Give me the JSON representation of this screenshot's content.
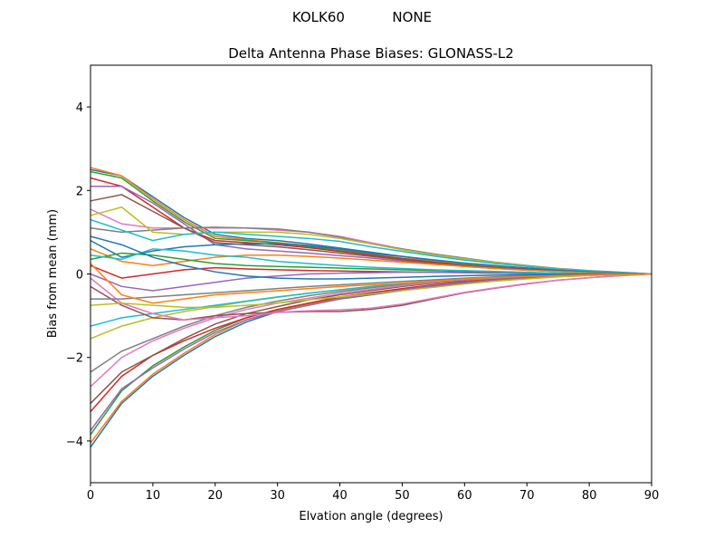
{
  "chart_data": {
    "type": "line",
    "suptitle": "KOLK60           NONE",
    "title": "Delta Antenna Phase Biases: GLONASS-L2",
    "xlabel": "Elvation angle (degrees)",
    "ylabel": "Bias from mean (mm)",
    "xlim": [
      0,
      90
    ],
    "ylim": [
      -5,
      5
    ],
    "xticks": [
      0,
      10,
      20,
      30,
      40,
      50,
      60,
      70,
      80,
      90
    ],
    "yticks": [
      -4,
      -2,
      0,
      2,
      4
    ],
    "grid": false,
    "colors": [
      "#1f77b4",
      "#ff7f0e",
      "#2ca02c",
      "#d62728",
      "#9467bd",
      "#8c564b",
      "#e377c2",
      "#7f7f7f",
      "#bcbd22",
      "#17becf"
    ],
    "x": [
      0,
      5,
      10,
      15,
      20,
      25,
      30,
      35,
      40,
      45,
      50,
      55,
      60,
      65,
      70,
      75,
      80,
      85,
      90
    ],
    "series": [
      {
        "values": [
          -4.15,
          -3.1,
          -2.45,
          -1.95,
          -1.5,
          -1.15,
          -0.9,
          -0.75,
          -0.6,
          -0.5,
          -0.4,
          -0.3,
          -0.22,
          -0.15,
          -0.1,
          -0.06,
          -0.03,
          -0.01,
          0
        ]
      },
      {
        "values": [
          -4.05,
          -3.05,
          -2.4,
          -1.9,
          -1.45,
          -1.1,
          -0.88,
          -0.72,
          -0.58,
          -0.48,
          -0.38,
          -0.28,
          -0.2,
          -0.14,
          -0.09,
          -0.05,
          -0.03,
          -0.01,
          0
        ]
      },
      {
        "values": [
          -3.85,
          -2.8,
          -2.2,
          -1.75,
          -1.35,
          -1.05,
          -0.85,
          -0.7,
          -0.56,
          -0.45,
          -0.36,
          -0.27,
          -0.2,
          -0.14,
          -0.09,
          -0.05,
          -0.03,
          -0.01,
          0
        ]
      },
      {
        "values": [
          -3.3,
          -2.45,
          -1.95,
          -1.6,
          -1.3,
          -1.05,
          -0.85,
          -0.7,
          -0.55,
          -0.45,
          -0.35,
          -0.26,
          -0.19,
          -0.13,
          -0.08,
          -0.05,
          -0.03,
          -0.01,
          0
        ]
      },
      {
        "values": [
          -3.75,
          -2.75,
          -2.25,
          -1.8,
          -1.4,
          -1.1,
          -0.9,
          -0.75,
          -0.6,
          -0.48,
          -0.38,
          -0.28,
          -0.2,
          -0.14,
          -0.09,
          -0.05,
          -0.03,
          -0.01,
          0
        ]
      },
      {
        "values": [
          -3.1,
          -2.35,
          -1.95,
          -1.55,
          -1.2,
          -0.95,
          -0.78,
          -0.62,
          -0.5,
          -0.4,
          -0.3,
          -0.22,
          -0.16,
          -0.11,
          -0.07,
          -0.04,
          -0.02,
          -0.01,
          0
        ]
      },
      {
        "values": [
          -2.7,
          -2.0,
          -1.6,
          -1.3,
          -1.05,
          -0.85,
          -0.7,
          -0.58,
          -0.46,
          -0.37,
          -0.28,
          -0.2,
          -0.14,
          -0.1,
          -0.06,
          -0.04,
          -0.02,
          -0.01,
          0
        ]
      },
      {
        "values": [
          -2.35,
          -1.85,
          -1.55,
          -1.25,
          -1.0,
          -0.8,
          -0.65,
          -0.52,
          -0.42,
          -0.33,
          -0.25,
          -0.18,
          -0.13,
          -0.09,
          -0.06,
          -0.03,
          -0.02,
          -0.01,
          0
        ]
      },
      {
        "values": [
          -1.55,
          -1.25,
          -1.05,
          -0.9,
          -0.78,
          -0.66,
          -0.56,
          -0.46,
          -0.38,
          -0.3,
          -0.23,
          -0.17,
          -0.12,
          -0.08,
          -0.05,
          -0.03,
          -0.02,
          -0.01,
          0
        ]
      },
      {
        "values": [
          -1.25,
          -1.05,
          -0.95,
          -0.85,
          -0.75,
          -0.65,
          -0.55,
          -0.46,
          -0.38,
          -0.3,
          -0.23,
          -0.17,
          -0.12,
          -0.08,
          -0.05,
          -0.03,
          -0.02,
          -0.01,
          0
        ]
      },
      {
        "values": [
          2.5,
          2.35,
          1.85,
          1.35,
          0.95,
          0.85,
          0.8,
          0.72,
          0.62,
          0.52,
          0.42,
          0.32,
          0.25,
          0.19,
          0.14,
          0.09,
          0.05,
          0.02,
          0
        ]
      },
      {
        "values": [
          2.55,
          2.35,
          1.8,
          1.3,
          0.9,
          0.82,
          0.75,
          0.68,
          0.58,
          0.48,
          0.38,
          0.3,
          0.23,
          0.17,
          0.12,
          0.08,
          0.05,
          0.02,
          0
        ]
      },
      {
        "values": [
          2.45,
          2.3,
          1.75,
          1.25,
          0.85,
          0.8,
          0.74,
          0.66,
          0.56,
          0.46,
          0.37,
          0.29,
          0.22,
          0.16,
          0.11,
          0.07,
          0.04,
          0.02,
          0
        ]
      },
      {
        "values": [
          2.3,
          2.1,
          1.6,
          1.1,
          0.8,
          0.75,
          0.7,
          0.63,
          0.54,
          0.45,
          0.36,
          0.28,
          0.21,
          0.15,
          0.11,
          0.07,
          0.04,
          0.02,
          0
        ]
      },
      {
        "values": [
          2.1,
          2.1,
          1.7,
          1.2,
          0.7,
          0.6,
          0.55,
          0.5,
          0.44,
          0.38,
          0.31,
          0.24,
          0.18,
          0.13,
          0.09,
          0.06,
          0.03,
          0.01,
          0
        ]
      },
      {
        "values": [
          1.75,
          1.9,
          1.5,
          1.1,
          0.75,
          0.7,
          0.65,
          0.58,
          0.5,
          0.42,
          0.34,
          0.26,
          0.2,
          0.14,
          0.1,
          0.06,
          0.03,
          0.01,
          0
        ]
      },
      {
        "values": [
          1.55,
          1.2,
          1.1,
          1.1,
          1.1,
          1.1,
          1.05,
          1.0,
          0.9,
          0.75,
          0.6,
          0.48,
          0.37,
          0.28,
          0.2,
          0.13,
          0.08,
          0.04,
          0
        ]
      },
      {
        "values": [
          1.1,
          1.0,
          1.05,
          1.1,
          1.12,
          1.1,
          1.08,
          1.0,
          0.88,
          0.72,
          0.6,
          0.48,
          0.38,
          0.28,
          0.2,
          0.13,
          0.08,
          0.04,
          0
        ]
      },
      {
        "values": [
          1.4,
          1.6,
          1.0,
          0.95,
          1.0,
          1.0,
          1.0,
          0.95,
          0.85,
          0.72,
          0.58,
          0.46,
          0.36,
          0.27,
          0.19,
          0.12,
          0.07,
          0.03,
          0
        ]
      },
      {
        "values": [
          1.3,
          1.05,
          0.8,
          0.95,
          1.0,
          0.95,
          0.9,
          0.85,
          0.78,
          0.65,
          0.54,
          0.43,
          0.33,
          0.25,
          0.18,
          0.11,
          0.07,
          0.03,
          0
        ]
      },
      {
        "values": [
          0.8,
          0.4,
          0.55,
          0.65,
          0.7,
          0.72,
          0.72,
          0.68,
          0.6,
          0.5,
          0.42,
          0.34,
          0.26,
          0.2,
          0.14,
          0.09,
          0.05,
          0.02,
          0
        ]
      },
      {
        "values": [
          0.6,
          0.3,
          0.2,
          0.3,
          0.4,
          0.45,
          0.45,
          0.42,
          0.38,
          0.33,
          0.28,
          0.23,
          0.18,
          0.13,
          0.09,
          0.06,
          0.03,
          0.01,
          0
        ]
      },
      {
        "values": [
          0.35,
          0.5,
          0.45,
          0.35,
          0.25,
          0.2,
          0.18,
          0.16,
          0.14,
          0.12,
          0.1,
          0.08,
          0.06,
          0.05,
          0.03,
          0.02,
          0.01,
          0.0,
          0
        ]
      },
      {
        "values": [
          0.2,
          -0.1,
          0.0,
          0.1,
          0.15,
          0.12,
          0.1,
          0.08,
          0.07,
          0.06,
          0.05,
          0.04,
          0.03,
          0.02,
          0.01,
          0.01,
          0.0,
          0.0,
          0
        ]
      },
      {
        "values": [
          0.0,
          -0.3,
          -0.4,
          -0.3,
          -0.2,
          -0.1,
          -0.05,
          0.0,
          0.02,
          0.03,
          0.04,
          0.04,
          0.03,
          0.02,
          0.01,
          0.01,
          0.0,
          0.0,
          0
        ]
      },
      {
        "values": [
          -0.3,
          -0.75,
          -1.05,
          -1.1,
          -1.0,
          -0.95,
          -0.92,
          -0.9,
          -0.9,
          -0.85,
          -0.75,
          -0.6,
          -0.45,
          -0.34,
          -0.24,
          -0.15,
          -0.09,
          -0.04,
          0
        ]
      },
      {
        "values": [
          -0.1,
          -0.7,
          -0.95,
          -1.1,
          -1.05,
          -1.0,
          -0.92,
          -0.88,
          -0.86,
          -0.82,
          -0.72,
          -0.58,
          -0.44,
          -0.33,
          -0.23,
          -0.15,
          -0.09,
          -0.04,
          0
        ]
      },
      {
        "values": [
          -0.6,
          -0.6,
          -0.55,
          -0.5,
          -0.45,
          -0.4,
          -0.35,
          -0.3,
          -0.26,
          -0.22,
          -0.18,
          -0.14,
          -0.1,
          -0.07,
          -0.05,
          -0.03,
          -0.02,
          -0.01,
          0
        ]
      },
      {
        "values": [
          -0.75,
          -0.7,
          -0.75,
          -0.8,
          -0.8,
          -0.75,
          -0.7,
          -0.62,
          -0.55,
          -0.48,
          -0.4,
          -0.32,
          -0.24,
          -0.17,
          -0.12,
          -0.07,
          -0.04,
          -0.02,
          0
        ]
      },
      {
        "values": [
          0.45,
          0.35,
          0.6,
          0.55,
          0.45,
          0.4,
          0.3,
          0.25,
          0.2,
          0.16,
          0.13,
          0.1,
          0.08,
          0.06,
          0.04,
          0.02,
          0.01,
          0.0,
          0
        ]
      },
      {
        "values": [
          0.9,
          0.7,
          0.4,
          0.2,
          0.05,
          -0.05,
          -0.1,
          -0.12,
          -0.12,
          -0.1,
          -0.08,
          -0.06,
          -0.04,
          -0.03,
          -0.02,
          -0.01,
          0.0,
          0.0,
          0
        ]
      },
      {
        "values": [
          0.25,
          -0.5,
          -0.7,
          -0.6,
          -0.5,
          -0.45,
          -0.4,
          -0.35,
          -0.3,
          -0.26,
          -0.22,
          -0.17,
          -0.12,
          -0.09,
          -0.06,
          -0.04,
          -0.02,
          -0.01,
          0
        ]
      }
    ]
  }
}
